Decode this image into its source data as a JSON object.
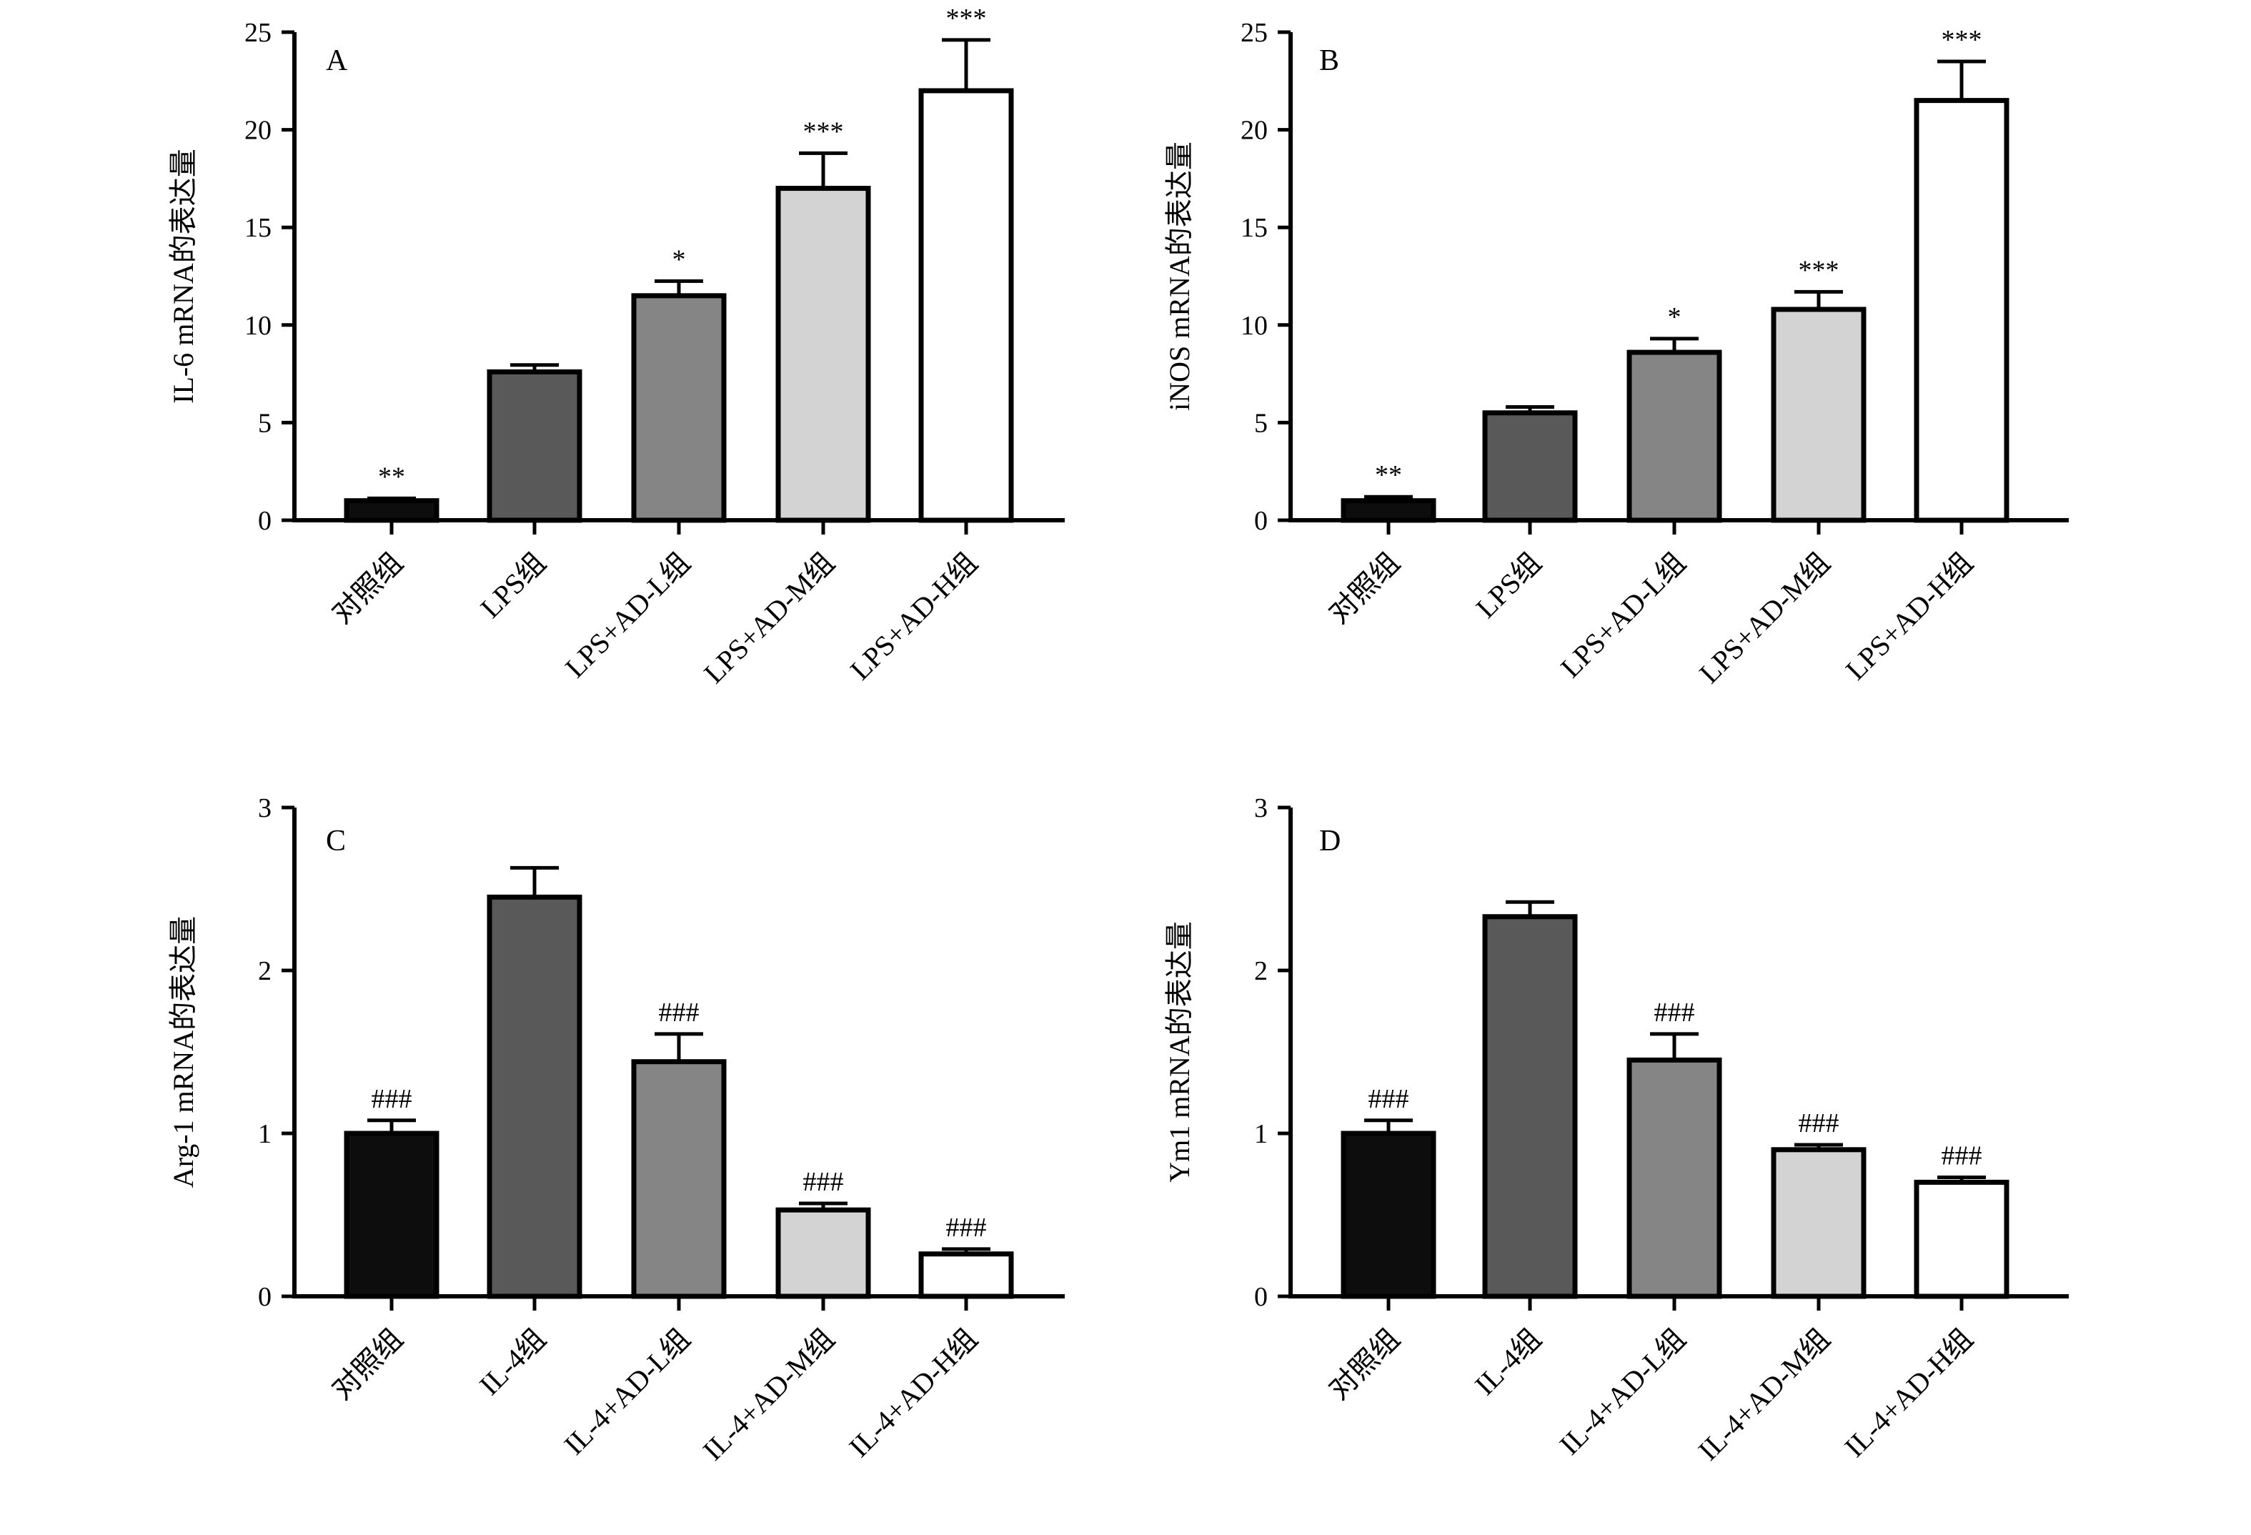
{
  "figure": {
    "background": "#ffffff",
    "stroke_color": "#000000"
  },
  "chart_data": [
    {
      "type": "bar",
      "panel": "A",
      "ylabel": "IL-6 mRNA的表达量",
      "ylim": [
        0,
        25
      ],
      "yticks": [
        "0",
        "5",
        "10",
        "15",
        "20",
        "25"
      ],
      "categories": [
        "对照组",
        "LPS组",
        "LPS+AD-L组",
        "LPS+AD-M组",
        "LPS+AD-H组"
      ],
      "values": [
        1.0,
        7.6,
        11.5,
        17.0,
        22.0
      ],
      "errors": [
        0.12,
        0.35,
        0.75,
        1.8,
        2.6
      ],
      "significance": [
        "**",
        "",
        "*",
        "***",
        "***"
      ],
      "bar_colors": [
        "#0d0d0d",
        "#595959",
        "#858585",
        "#d3d3d3",
        "#ffffff"
      ]
    },
    {
      "type": "bar",
      "panel": "B",
      "ylabel": "iNOS mRNA的表达量",
      "ylim": [
        0,
        25
      ],
      "yticks": [
        "0",
        "5",
        "10",
        "15",
        "20",
        "25"
      ],
      "categories": [
        "对照组",
        "LPS组",
        "LPS+AD-L组",
        "LPS+AD-M组",
        "LPS+AD-H组"
      ],
      "values": [
        1.0,
        5.5,
        8.6,
        10.8,
        21.5
      ],
      "errors": [
        0.2,
        0.3,
        0.7,
        0.9,
        2.0
      ],
      "significance": [
        "**",
        "",
        "*",
        "***",
        "***"
      ],
      "bar_colors": [
        "#0d0d0d",
        "#595959",
        "#858585",
        "#d3d3d3",
        "#ffffff"
      ]
    },
    {
      "type": "bar",
      "panel": "C",
      "ylabel": "Arg-1 mRNA的表达量",
      "ylim": [
        0,
        3
      ],
      "yticks": [
        "0",
        "1",
        "2",
        "3"
      ],
      "categories": [
        "对照组",
        "IL-4组",
        "IL-4+AD-L组",
        "IL-4+AD-M组",
        "IL-4+AD-H组"
      ],
      "values": [
        1.0,
        2.45,
        1.44,
        0.53,
        0.26
      ],
      "errors": [
        0.08,
        0.18,
        0.17,
        0.04,
        0.03
      ],
      "significance": [
        "###",
        "",
        "###",
        "###",
        "###"
      ],
      "bar_colors": [
        "#0d0d0d",
        "#595959",
        "#858585",
        "#d3d3d3",
        "#ffffff"
      ]
    },
    {
      "type": "bar",
      "panel": "D",
      "ylabel": "Ym1 mRNA的表达量",
      "ylim": [
        0,
        3
      ],
      "yticks": [
        "0",
        "1",
        "2",
        "3"
      ],
      "categories": [
        "对照组",
        "IL-4组",
        "IL-4+AD-L组",
        "IL-4+AD-M组",
        "IL-4+AD-H组"
      ],
      "values": [
        1.0,
        2.33,
        1.45,
        0.9,
        0.7
      ],
      "errors": [
        0.08,
        0.09,
        0.16,
        0.03,
        0.03
      ],
      "significance": [
        "###",
        "",
        "###",
        "###",
        "###"
      ],
      "bar_colors": [
        "#0d0d0d",
        "#595959",
        "#858585",
        "#d3d3d3",
        "#ffffff"
      ]
    }
  ]
}
